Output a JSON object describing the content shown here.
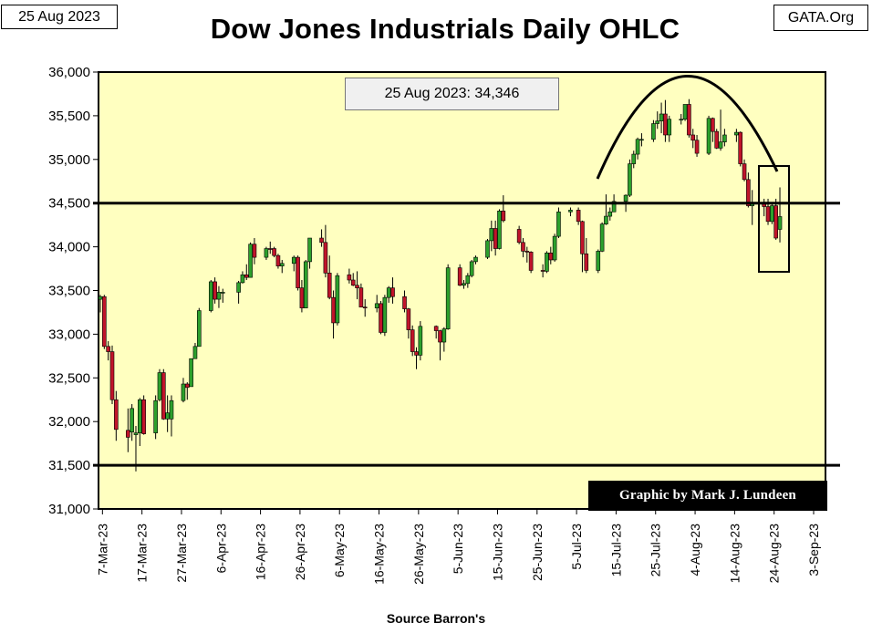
{
  "header": {
    "date_label": "25 Aug 2023",
    "site_label": "GATA.Org"
  },
  "annotations": {
    "latest_close": "25 Aug 2023: 34,346",
    "credit": "Graphic by Mark J. Lundeen",
    "source": "Source Barron's"
  },
  "colors": {
    "plot_background": "#ffffc0",
    "up_candle": "#2ca02c",
    "down_candle": "#c0142a",
    "outline": "#000000"
  },
  "chart_data": {
    "type": "candlestick",
    "title": "Dow Jones Industrials Daily OHLC",
    "xlabel": "",
    "ylabel": "",
    "ylim": [
      31000,
      36000
    ],
    "y_ticks": [
      "31,000",
      "31,500",
      "32,000",
      "32,500",
      "33,000",
      "33,500",
      "34,000",
      "34,500",
      "35,000",
      "35,500",
      "36,000"
    ],
    "y_tick_values": [
      31000,
      31500,
      32000,
      32500,
      33000,
      33500,
      34000,
      34500,
      35000,
      35500,
      36000
    ],
    "x_range": [
      "2023-03-06",
      "2023-09-06"
    ],
    "x_ticks": [
      "7-Mar-23",
      "17-Mar-23",
      "27-Mar-23",
      "6-Apr-23",
      "16-Apr-23",
      "26-Apr-23",
      "6-May-23",
      "16-May-23",
      "26-May-23",
      "5-Jun-23",
      "15-Jun-23",
      "25-Jun-23",
      "5-Jul-23",
      "15-Jul-23",
      "25-Jul-23",
      "4-Aug-23",
      "14-Aug-23",
      "24-Aug-23",
      "3-Sep-23"
    ],
    "x_tick_dates": [
      "2023-03-07",
      "2023-03-17",
      "2023-03-27",
      "2023-04-06",
      "2023-04-16",
      "2023-04-26",
      "2023-05-06",
      "2023-05-16",
      "2023-05-26",
      "2023-06-05",
      "2023-06-15",
      "2023-06-25",
      "2023-07-05",
      "2023-07-15",
      "2023-07-25",
      "2023-08-04",
      "2023-08-14",
      "2023-08-24",
      "2023-09-03"
    ],
    "grid": false,
    "reference_lines": [
      34500,
      31500
    ],
    "candles": [
      {
        "date": "2023-03-06",
        "open": 33400,
        "high": 33450,
        "low": 33250,
        "close": 33430
      },
      {
        "date": "2023-03-07",
        "open": 33430,
        "high": 33450,
        "low": 32830,
        "close": 32860
      },
      {
        "date": "2023-03-08",
        "open": 32860,
        "high": 32920,
        "low": 32700,
        "close": 32800
      },
      {
        "date": "2023-03-09",
        "open": 32800,
        "high": 32870,
        "low": 32200,
        "close": 32250
      },
      {
        "date": "2023-03-10",
        "open": 32250,
        "high": 32350,
        "low": 31780,
        "close": 31910
      },
      {
        "date": "2023-03-13",
        "open": 31900,
        "high": 32150,
        "low": 31650,
        "close": 31820
      },
      {
        "date": "2023-03-14",
        "open": 31880,
        "high": 32200,
        "low": 31780,
        "close": 32150
      },
      {
        "date": "2023-03-15",
        "open": 31850,
        "high": 31950,
        "low": 31430,
        "close": 31870
      },
      {
        "date": "2023-03-16",
        "open": 31870,
        "high": 32270,
        "low": 31720,
        "close": 32250
      },
      {
        "date": "2023-03-17",
        "open": 32250,
        "high": 32300,
        "low": 31850,
        "close": 31860
      },
      {
        "date": "2023-03-20",
        "open": 31870,
        "high": 32300,
        "low": 31800,
        "close": 32240
      },
      {
        "date": "2023-03-21",
        "open": 32250,
        "high": 32600,
        "low": 32230,
        "close": 32560
      },
      {
        "date": "2023-03-22",
        "open": 32560,
        "high": 32600,
        "low": 32020,
        "close": 32030
      },
      {
        "date": "2023-03-23",
        "open": 32030,
        "high": 32300,
        "low": 31880,
        "close": 32100
      },
      {
        "date": "2023-03-24",
        "open": 32030,
        "high": 32300,
        "low": 31830,
        "close": 32240
      },
      {
        "date": "2023-03-27",
        "open": 32240,
        "high": 32500,
        "low": 32220,
        "close": 32430
      },
      {
        "date": "2023-03-28",
        "open": 32430,
        "high": 32450,
        "low": 32250,
        "close": 32390
      },
      {
        "date": "2023-03-29",
        "open": 32400,
        "high": 32720,
        "low": 32400,
        "close": 32720
      },
      {
        "date": "2023-03-30",
        "open": 32720,
        "high": 32900,
        "low": 32720,
        "close": 32860
      },
      {
        "date": "2023-03-31",
        "open": 32860,
        "high": 33300,
        "low": 32860,
        "close": 33270
      },
      {
        "date": "2023-04-03",
        "open": 33270,
        "high": 33620,
        "low": 33250,
        "close": 33600
      },
      {
        "date": "2023-04-04",
        "open": 33600,
        "high": 33650,
        "low": 33350,
        "close": 33400
      },
      {
        "date": "2023-04-05",
        "open": 33400,
        "high": 33550,
        "low": 33300,
        "close": 33480
      },
      {
        "date": "2023-04-06",
        "open": 33480,
        "high": 33520,
        "low": 33360,
        "close": 33480
      },
      {
        "date": "2023-04-10",
        "open": 33480,
        "high": 33610,
        "low": 33350,
        "close": 33590
      },
      {
        "date": "2023-04-11",
        "open": 33590,
        "high": 33720,
        "low": 33580,
        "close": 33680
      },
      {
        "date": "2023-04-12",
        "open": 33680,
        "high": 33800,
        "low": 33620,
        "close": 33650
      },
      {
        "date": "2023-04-13",
        "open": 33650,
        "high": 34050,
        "low": 33650,
        "close": 34030
      },
      {
        "date": "2023-04-14",
        "open": 34030,
        "high": 34100,
        "low": 33800,
        "close": 33880
      },
      {
        "date": "2023-04-17",
        "open": 33880,
        "high": 34000,
        "low": 33850,
        "close": 33980
      },
      {
        "date": "2023-04-18",
        "open": 33980,
        "high": 34060,
        "low": 33920,
        "close": 33970
      },
      {
        "date": "2023-04-19",
        "open": 33980,
        "high": 34000,
        "low": 33880,
        "close": 33900
      },
      {
        "date": "2023-04-20",
        "open": 33900,
        "high": 33920,
        "low": 33750,
        "close": 33780
      },
      {
        "date": "2023-04-21",
        "open": 33780,
        "high": 33850,
        "low": 33700,
        "close": 33810
      },
      {
        "date": "2023-04-24",
        "open": 33810,
        "high": 33900,
        "low": 33720,
        "close": 33880
      },
      {
        "date": "2023-04-25",
        "open": 33880,
        "high": 33900,
        "low": 33500,
        "close": 33530
      },
      {
        "date": "2023-04-26",
        "open": 33530,
        "high": 33620,
        "low": 33250,
        "close": 33300
      },
      {
        "date": "2023-04-27",
        "open": 33300,
        "high": 33850,
        "low": 33300,
        "close": 33830
      },
      {
        "date": "2023-04-28",
        "open": 33830,
        "high": 34100,
        "low": 33750,
        "close": 34100
      },
      {
        "date": "2023-05-01",
        "open": 34100,
        "high": 34200,
        "low": 34000,
        "close": 34050
      },
      {
        "date": "2023-05-02",
        "open": 34050,
        "high": 34250,
        "low": 33650,
        "close": 33700
      },
      {
        "date": "2023-05-03",
        "open": 33700,
        "high": 33900,
        "low": 33400,
        "close": 33420
      },
      {
        "date": "2023-05-04",
        "open": 33420,
        "high": 33500,
        "low": 32950,
        "close": 33130
      },
      {
        "date": "2023-05-05",
        "open": 33130,
        "high": 33700,
        "low": 33100,
        "close": 33670
      },
      {
        "date": "2023-05-08",
        "open": 33680,
        "high": 33750,
        "low": 33580,
        "close": 33620
      },
      {
        "date": "2023-05-09",
        "open": 33620,
        "high": 33700,
        "low": 33550,
        "close": 33560
      },
      {
        "date": "2023-05-10",
        "open": 33560,
        "high": 33720,
        "low": 33400,
        "close": 33530
      },
      {
        "date": "2023-05-11",
        "open": 33530,
        "high": 33580,
        "low": 33320,
        "close": 33310
      },
      {
        "date": "2023-05-12",
        "open": 33310,
        "high": 33400,
        "low": 33200,
        "close": 33300
      },
      {
        "date": "2023-05-15",
        "open": 33300,
        "high": 33450,
        "low": 33250,
        "close": 33350
      },
      {
        "date": "2023-05-16",
        "open": 33350,
        "high": 33380,
        "low": 33000,
        "close": 33020
      },
      {
        "date": "2023-05-17",
        "open": 33020,
        "high": 33450,
        "low": 32980,
        "close": 33420
      },
      {
        "date": "2023-05-18",
        "open": 33420,
        "high": 33550,
        "low": 33360,
        "close": 33530
      },
      {
        "date": "2023-05-19",
        "open": 33530,
        "high": 33650,
        "low": 33350,
        "close": 33430
      },
      {
        "date": "2023-05-22",
        "open": 33430,
        "high": 33500,
        "low": 33250,
        "close": 33290
      },
      {
        "date": "2023-05-23",
        "open": 33290,
        "high": 33300,
        "low": 32950,
        "close": 33050
      },
      {
        "date": "2023-05-24",
        "open": 33050,
        "high": 33100,
        "low": 32750,
        "close": 32800
      },
      {
        "date": "2023-05-25",
        "open": 32800,
        "high": 32850,
        "low": 32600,
        "close": 32760
      },
      {
        "date": "2023-05-26",
        "open": 32760,
        "high": 33150,
        "low": 32700,
        "close": 33090
      },
      {
        "date": "2023-05-30",
        "open": 33090,
        "high": 33100,
        "low": 32950,
        "close": 33040
      },
      {
        "date": "2023-05-31",
        "open": 33040,
        "high": 33050,
        "low": 32700,
        "close": 32910
      },
      {
        "date": "2023-06-01",
        "open": 32910,
        "high": 33080,
        "low": 32800,
        "close": 33060
      },
      {
        "date": "2023-06-02",
        "open": 33060,
        "high": 33800,
        "low": 33050,
        "close": 33760
      },
      {
        "date": "2023-06-05",
        "open": 33760,
        "high": 33800,
        "low": 33550,
        "close": 33560
      },
      {
        "date": "2023-06-06",
        "open": 33560,
        "high": 33620,
        "low": 33520,
        "close": 33580
      },
      {
        "date": "2023-06-07",
        "open": 33580,
        "high": 33700,
        "low": 33530,
        "close": 33670
      },
      {
        "date": "2023-06-08",
        "open": 33670,
        "high": 33850,
        "low": 33650,
        "close": 33830
      },
      {
        "date": "2023-06-09",
        "open": 33830,
        "high": 33900,
        "low": 33800,
        "close": 33880
      },
      {
        "date": "2023-06-12",
        "open": 33880,
        "high": 34090,
        "low": 33860,
        "close": 34070
      },
      {
        "date": "2023-06-13",
        "open": 34070,
        "high": 34300,
        "low": 33950,
        "close": 34210
      },
      {
        "date": "2023-06-14",
        "open": 34210,
        "high": 34300,
        "low": 33900,
        "close": 33980
      },
      {
        "date": "2023-06-15",
        "open": 33980,
        "high": 34430,
        "low": 33970,
        "close": 34410
      },
      {
        "date": "2023-06-16",
        "open": 34410,
        "high": 34590,
        "low": 34280,
        "close": 34300
      },
      {
        "date": "2023-06-20",
        "open": 34200,
        "high": 34240,
        "low": 34030,
        "close": 34050
      },
      {
        "date": "2023-06-21",
        "open": 34050,
        "high": 34100,
        "low": 33880,
        "close": 33950
      },
      {
        "date": "2023-06-22",
        "open": 33950,
        "high": 34000,
        "low": 33820,
        "close": 33940
      },
      {
        "date": "2023-06-23",
        "open": 33940,
        "high": 33950,
        "low": 33700,
        "close": 33730
      },
      {
        "date": "2023-06-26",
        "open": 33730,
        "high": 33800,
        "low": 33650,
        "close": 33720
      },
      {
        "date": "2023-06-27",
        "open": 33720,
        "high": 33950,
        "low": 33700,
        "close": 33930
      },
      {
        "date": "2023-06-28",
        "open": 33930,
        "high": 34000,
        "low": 33800,
        "close": 33850
      },
      {
        "date": "2023-06-29",
        "open": 33850,
        "high": 34150,
        "low": 33830,
        "close": 34120
      },
      {
        "date": "2023-06-30",
        "open": 34120,
        "high": 34450,
        "low": 34100,
        "close": 34400
      },
      {
        "date": "2023-07-03",
        "open": 34400,
        "high": 34450,
        "low": 34350,
        "close": 34420
      },
      {
        "date": "2023-07-05",
        "open": 34420,
        "high": 34450,
        "low": 34250,
        "close": 34290
      },
      {
        "date": "2023-07-06",
        "open": 34290,
        "high": 34300,
        "low": 33710,
        "close": 33920
      },
      {
        "date": "2023-07-07",
        "open": 33920,
        "high": 34100,
        "low": 33700,
        "close": 33730
      },
      {
        "date": "2023-07-10",
        "open": 33730,
        "high": 33970,
        "low": 33700,
        "close": 33950
      },
      {
        "date": "2023-07-11",
        "open": 33950,
        "high": 34280,
        "low": 33940,
        "close": 34260
      },
      {
        "date": "2023-07-12",
        "open": 34260,
        "high": 34600,
        "low": 34250,
        "close": 34350
      },
      {
        "date": "2023-07-13",
        "open": 34350,
        "high": 34450,
        "low": 34300,
        "close": 34400
      },
      {
        "date": "2023-07-14",
        "open": 34400,
        "high": 34600,
        "low": 34450,
        "close": 34520
      },
      {
        "date": "2023-07-17",
        "open": 34520,
        "high": 34600,
        "low": 34400,
        "close": 34590
      },
      {
        "date": "2023-07-18",
        "open": 34590,
        "high": 35000,
        "low": 34570,
        "close": 34950
      },
      {
        "date": "2023-07-19",
        "open": 34950,
        "high": 35100,
        "low": 34900,
        "close": 35060
      },
      {
        "date": "2023-07-20",
        "open": 35060,
        "high": 35250,
        "low": 35000,
        "close": 35230
      },
      {
        "date": "2023-07-21",
        "open": 35230,
        "high": 35300,
        "low": 35150,
        "close": 35230
      },
      {
        "date": "2023-07-24",
        "open": 35230,
        "high": 35450,
        "low": 35200,
        "close": 35410
      },
      {
        "date": "2023-07-25",
        "open": 35410,
        "high": 35550,
        "low": 35350,
        "close": 35440
      },
      {
        "date": "2023-07-26",
        "open": 35440,
        "high": 35650,
        "low": 35300,
        "close": 35520
      },
      {
        "date": "2023-07-27",
        "open": 35520,
        "high": 35680,
        "low": 35200,
        "close": 35280
      },
      {
        "date": "2023-07-28",
        "open": 35280,
        "high": 35500,
        "low": 35200,
        "close": 35460
      },
      {
        "date": "2023-07-31",
        "open": 35460,
        "high": 35520,
        "low": 35400,
        "close": 35460
      },
      {
        "date": "2023-08-01",
        "open": 35460,
        "high": 35620,
        "low": 35440,
        "close": 35630
      },
      {
        "date": "2023-08-02",
        "open": 35630,
        "high": 35690,
        "low": 35250,
        "close": 35280
      },
      {
        "date": "2023-08-03",
        "open": 35280,
        "high": 35350,
        "low": 35130,
        "close": 35220
      },
      {
        "date": "2023-08-04",
        "open": 35220,
        "high": 35280,
        "low": 35030,
        "close": 35070
      },
      {
        "date": "2023-08-07",
        "open": 35070,
        "high": 35500,
        "low": 35050,
        "close": 35470
      },
      {
        "date": "2023-08-08",
        "open": 35470,
        "high": 35480,
        "low": 35200,
        "close": 35320
      },
      {
        "date": "2023-08-09",
        "open": 35320,
        "high": 35350,
        "low": 35120,
        "close": 35130
      },
      {
        "date": "2023-08-10",
        "open": 35130,
        "high": 35570,
        "low": 35100,
        "close": 35200
      },
      {
        "date": "2023-08-11",
        "open": 35200,
        "high": 35350,
        "low": 35150,
        "close": 35280
      },
      {
        "date": "2023-08-14",
        "open": 35280,
        "high": 35350,
        "low": 35200,
        "close": 35310
      },
      {
        "date": "2023-08-15",
        "open": 35310,
        "high": 35320,
        "low": 34920,
        "close": 34950
      },
      {
        "date": "2023-08-16",
        "open": 34950,
        "high": 35000,
        "low": 34750,
        "close": 34770
      },
      {
        "date": "2023-08-17",
        "open": 34770,
        "high": 34850,
        "low": 34450,
        "close": 34470
      },
      {
        "date": "2023-08-18",
        "open": 34470,
        "high": 34650,
        "low": 34250,
        "close": 34500
      },
      {
        "date": "2023-08-21",
        "open": 34500,
        "high": 34550,
        "low": 34350,
        "close": 34460
      },
      {
        "date": "2023-08-22",
        "open": 34460,
        "high": 34550,
        "low": 34250,
        "close": 34290
      },
      {
        "date": "2023-08-23",
        "open": 34290,
        "high": 34500,
        "low": 34260,
        "close": 34470
      },
      {
        "date": "2023-08-24",
        "open": 34470,
        "high": 34550,
        "low": 34080,
        "close": 34100
      },
      {
        "date": "2023-08-25",
        "open": 34200,
        "high": 34680,
        "low": 34050,
        "close": 34346
      }
    ]
  }
}
